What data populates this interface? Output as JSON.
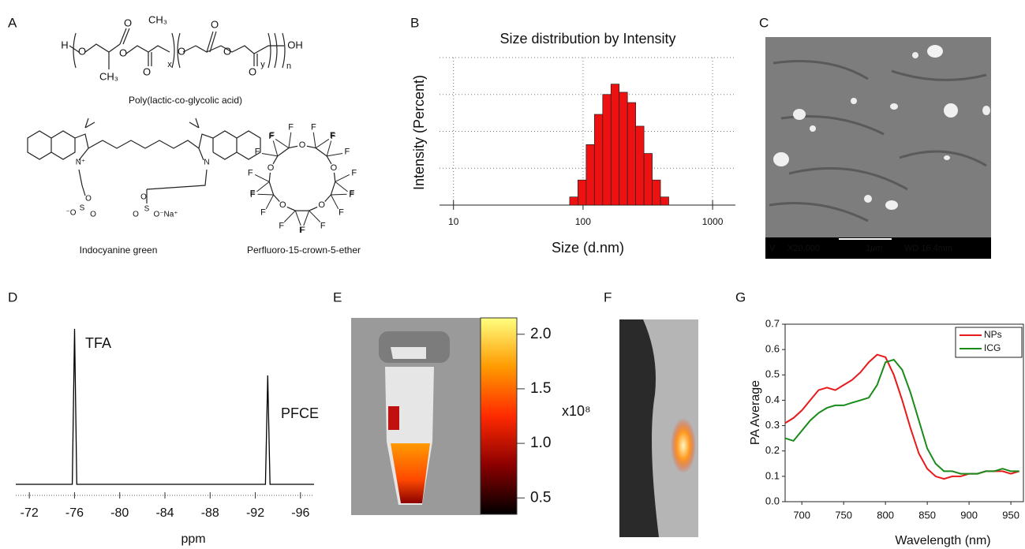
{
  "panels": [
    "A",
    "B",
    "C",
    "D",
    "E",
    "F",
    "G"
  ],
  "structures": {
    "plga": {
      "name": "Poly(lactic-co-glycolic acid)",
      "atoms": [
        "H",
        "O",
        "O",
        "O",
        "CH₃",
        "CH₃",
        "O",
        "x",
        "O",
        "O",
        "O",
        "O",
        "y",
        "n",
        "OH"
      ]
    },
    "icg": {
      "name": "Indocyanine green",
      "atoms": [
        "N⁺",
        "N",
        "O",
        "S",
        "O",
        "⁻O",
        "O",
        "S",
        "O",
        "O⁻Na⁺"
      ]
    },
    "pfce": {
      "name": "Perfluoro-15-crown-5-ether",
      "oxygens": [
        "O",
        "O",
        "O",
        "O",
        "O"
      ],
      "fluorines": [
        "F",
        "F",
        "F",
        "F",
        "F",
        "F",
        "F",
        "F",
        "F",
        "F",
        "F",
        "F",
        "F",
        "F",
        "F",
        "F",
        "F",
        "F",
        "F",
        "F"
      ]
    }
  },
  "sem": {
    "labels": [
      "V",
      "X20,000",
      "1μm",
      "WD 16.4mm"
    ]
  },
  "chart_data": [
    {
      "type": "histogram",
      "title": "Size distribution by Intensity",
      "x_label": "Size (d.nm)",
      "y_label": "Intensity (Percent)",
      "log_x": true,
      "bins": [
        78.82,
        91.28,
        105.7,
        122.4,
        141.8,
        164.2,
        190.1,
        220.2,
        255.0,
        295.3,
        342.0,
        396.1,
        458.7
      ],
      "values": [
        1.1,
        3.4,
        8.2,
        12.3,
        15.0,
        16.4,
        15.3,
        13.9,
        10.7,
        7.0,
        3.4,
        1.1
      ],
      "xlim": [
        7.8,
        1500
      ],
      "xticks": [
        10,
        100,
        1000
      ],
      "ylim": [
        0,
        20
      ],
      "yticks": [
        0,
        5,
        10,
        15,
        20
      ],
      "grid": true,
      "color": "#ee1111"
    },
    {
      "type": "line",
      "x_label": "ppm",
      "annotations": [
        "TFA",
        "PFCE"
      ],
      "x": [
        -70.8,
        -75.8,
        -76.0,
        -76.2,
        -92.9,
        -93.1,
        -93.3,
        -97.2
      ],
      "values": [
        0,
        0,
        1,
        0,
        0,
        0.7,
        0,
        0
      ],
      "color": "#000000",
      "xlim": [
        -70.8,
        -97.2
      ],
      "xticks": [
        -72,
        -76,
        -80,
        -84,
        -88,
        -92,
        -96
      ],
      "ylim": [
        0,
        1.05
      ]
    },
    {
      "type": "colorbar",
      "clim": [
        0.35,
        2.15
      ],
      "ticks": [
        0.5,
        {
          "value": 1,
          "label": "1.0"
        },
        1.5,
        {
          "value": 2,
          "label": "2.0"
        }
      ],
      "multiplier": "x10⁸",
      "colormap": [
        "#000000",
        "#8b0000",
        "#ff2a00",
        "#ff9a00",
        "#ffff80"
      ]
    },
    {
      "type": "line",
      "x_label": "Wavelength (nm)",
      "y_label": "PA Average",
      "x": [
        680,
        690,
        700,
        710,
        720,
        730,
        740,
        750,
        760,
        770,
        780,
        790,
        800,
        810,
        820,
        830,
        840,
        850,
        860,
        870,
        880,
        890,
        900,
        910,
        920,
        930,
        940,
        950,
        960
      ],
      "series": [
        {
          "name": "NPs",
          "color": "#e8191b",
          "values": [
            0.31,
            0.33,
            0.36,
            0.4,
            0.44,
            0.45,
            0.44,
            0.46,
            0.48,
            0.51,
            0.55,
            0.58,
            0.57,
            0.5,
            0.4,
            0.29,
            0.19,
            0.13,
            0.1,
            0.09,
            0.1,
            0.1,
            0.11,
            0.11,
            0.12,
            0.12,
            0.12,
            0.11,
            0.12
          ]
        },
        {
          "name": "ICG",
          "color": "#1a8a1a",
          "values": [
            0.25,
            0.24,
            0.28,
            0.32,
            0.35,
            0.37,
            0.38,
            0.38,
            0.39,
            0.4,
            0.41,
            0.46,
            0.55,
            0.56,
            0.52,
            0.43,
            0.32,
            0.21,
            0.15,
            0.12,
            0.12,
            0.11,
            0.11,
            0.11,
            0.12,
            0.12,
            0.13,
            0.12,
            0.12
          ]
        }
      ],
      "xlim": [
        680,
        965
      ],
      "xticks": [
        700,
        750,
        800,
        850,
        900,
        950
      ],
      "ylim": [
        0,
        0.7
      ],
      "yticks": [
        {
          "value": 0,
          "label": "0.0"
        },
        0.1,
        0.2,
        0.3,
        0.4,
        0.5,
        0.6,
        0.7
      ],
      "legend": "upper right"
    }
  ]
}
